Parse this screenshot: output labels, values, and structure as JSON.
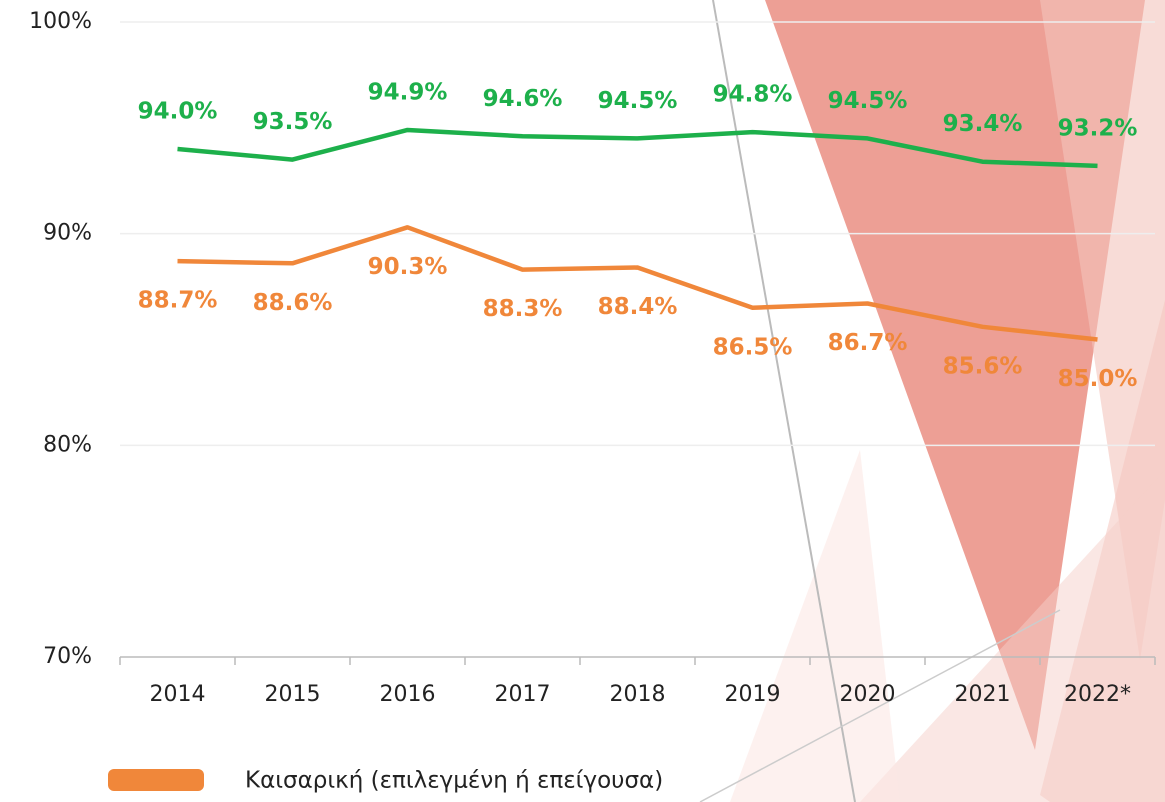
{
  "chart_data": {
    "type": "line",
    "categories": [
      "2014",
      "2015",
      "2016",
      "2017",
      "2018",
      "2019",
      "2020",
      "2021",
      "2022*"
    ],
    "series": [
      {
        "color": "#1db04b",
        "values": [
          94.0,
          93.5,
          94.9,
          94.6,
          94.5,
          94.8,
          94.5,
          93.4,
          93.2
        ],
        "value_labels": [
          "94.0%",
          "93.5%",
          "94.9%",
          "94.6%",
          "94.5%",
          "94.8%",
          "94.5%",
          "93.4%",
          "93.2%"
        ]
      },
      {
        "name": "Καισαρική (επιλεγμένη ή επείγουσα)",
        "color": "#f0873a",
        "values": [
          88.7,
          88.6,
          90.3,
          88.3,
          88.4,
          86.5,
          86.7,
          85.6,
          85.0
        ],
        "value_labels": [
          "88.7%",
          "88.6%",
          "90.3%",
          "88.3%",
          "88.4%",
          "86.5%",
          "86.7%",
          "85.6%",
          "85.0%"
        ]
      }
    ],
    "ylim": [
      70,
      100
    ],
    "yticks": [
      {
        "value": 70,
        "label": "70%"
      },
      {
        "value": 80,
        "label": "80%"
      },
      {
        "value": 90,
        "label": "90%"
      },
      {
        "value": 100,
        "label": "100%"
      }
    ],
    "grid": true
  }
}
